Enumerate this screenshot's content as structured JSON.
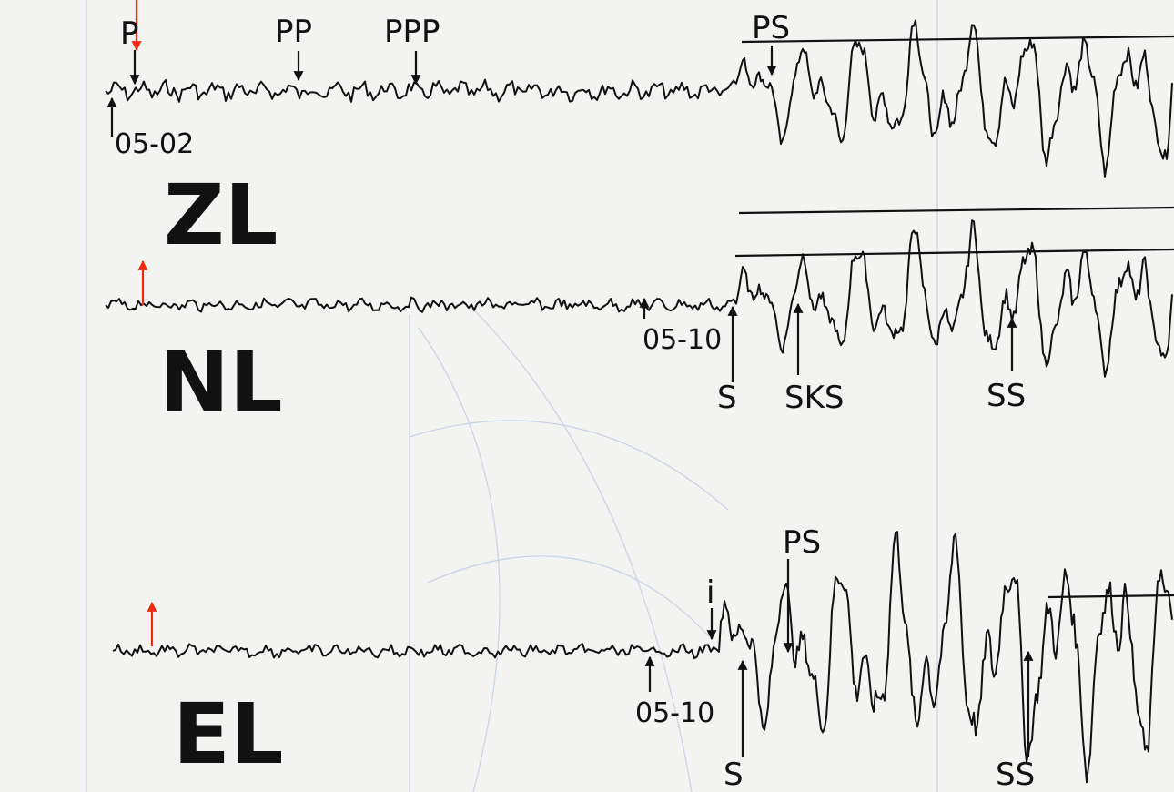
{
  "traces": [
    {
      "label": "ZL",
      "time_mark": "05-02",
      "phases": [
        "P",
        "PP",
        "PPP",
        "PS"
      ]
    },
    {
      "label": "NL",
      "time_mark": "05-10",
      "phases": [
        "S",
        "SKS",
        "SS"
      ]
    },
    {
      "label": "EL",
      "time_mark": "05-10",
      "marker": "i",
      "phases": [
        "PS",
        "S",
        "SS"
      ]
    }
  ]
}
